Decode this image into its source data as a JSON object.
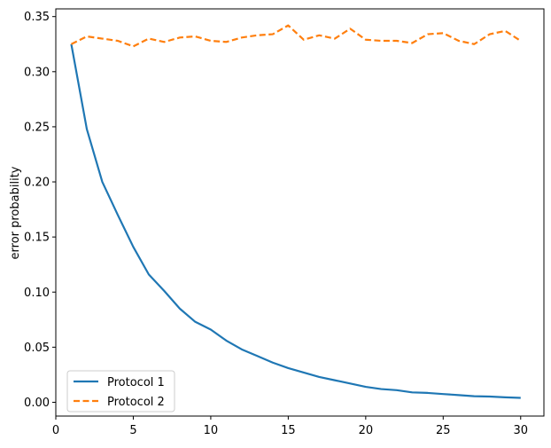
{
  "chart_data": {
    "type": "line",
    "title": "",
    "xlabel": "",
    "ylabel": "error probability",
    "xlim": [
      0,
      31.5
    ],
    "ylim": [
      -0.0125,
      0.357
    ],
    "xticks": [
      0,
      5,
      10,
      15,
      20,
      25,
      30
    ],
    "yticks": [
      0.0,
      0.05,
      0.1,
      0.15,
      0.2,
      0.25,
      0.3,
      0.35
    ],
    "x": [
      1,
      2,
      3,
      4,
      5,
      6,
      7,
      8,
      9,
      10,
      11,
      12,
      13,
      14,
      15,
      16,
      17,
      18,
      19,
      20,
      21,
      22,
      23,
      24,
      25,
      26,
      27,
      28,
      29,
      30
    ],
    "series": [
      {
        "name": "Protocol 1",
        "color": "#1f77b4",
        "style": "solid",
        "values": [
          0.325,
          0.248,
          0.2,
          0.17,
          0.141,
          0.116,
          0.101,
          0.085,
          0.073,
          0.066,
          0.056,
          0.048,
          0.042,
          0.036,
          0.031,
          0.027,
          0.023,
          0.02,
          0.017,
          0.014,
          0.012,
          0.011,
          0.009,
          0.0085,
          0.0075,
          0.0065,
          0.0055,
          0.0052,
          0.0045,
          0.004
        ]
      },
      {
        "name": "Protocol 2",
        "color": "#ff7f0e",
        "style": "dashed",
        "values": [
          0.325,
          0.332,
          0.33,
          0.328,
          0.323,
          0.33,
          0.327,
          0.331,
          0.332,
          0.328,
          0.327,
          0.331,
          0.333,
          0.334,
          0.342,
          0.329,
          0.333,
          0.33,
          0.339,
          0.329,
          0.328,
          0.328,
          0.326,
          0.334,
          0.335,
          0.328,
          0.325,
          0.334,
          0.337,
          0.328
        ]
      }
    ],
    "grid": false,
    "legend_position": "lower-left"
  }
}
